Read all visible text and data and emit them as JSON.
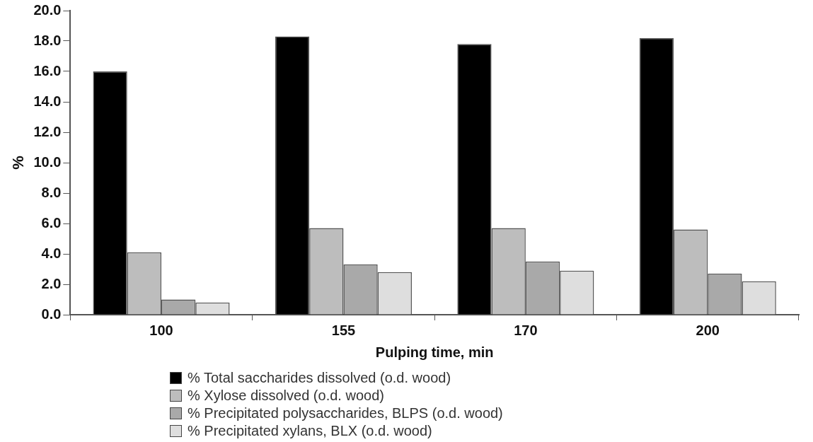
{
  "chart_data": {
    "type": "bar",
    "xlabel": "Pulping time, min",
    "ylabel": "%",
    "categories": [
      "100",
      "155",
      "170",
      "200"
    ],
    "series": [
      {
        "name": "% Total saccharides dissolved (o.d. wood)",
        "color": "#000000",
        "values": [
          16.0,
          18.3,
          17.8,
          18.2
        ]
      },
      {
        "name": "% Xylose dissolved (o.d. wood)",
        "color": "#bdbdbd",
        "values": [
          4.1,
          5.7,
          5.7,
          5.6
        ]
      },
      {
        "name": "% Precipitated polysaccharides, BLPS (o.d. wood)",
        "color": "#a9a9a9",
        "values": [
          1.0,
          3.3,
          3.5,
          2.7
        ]
      },
      {
        "name": "% Precipitated xylans, BLX (o.d. wood)",
        "color": "#dedede",
        "values": [
          0.8,
          2.8,
          2.9,
          2.2
        ]
      }
    ],
    "ylim": [
      0,
      20
    ],
    "yticks": [
      {
        "value": 0,
        "label": "0.0"
      },
      {
        "value": 2,
        "label": "2.0"
      },
      {
        "value": 4,
        "label": "4.0"
      },
      {
        "value": 6,
        "label": "6.0"
      },
      {
        "value": 8,
        "label": "8.0"
      },
      {
        "value": 10,
        "label": "10.0"
      },
      {
        "value": 12,
        "label": "12.0"
      },
      {
        "value": 14,
        "label": "14.0"
      },
      {
        "value": 16,
        "label": "16.0"
      },
      {
        "value": 18,
        "label": "18.0"
      },
      {
        "value": 20,
        "label": "20.0"
      }
    ],
    "grid": false,
    "legend": "bottom"
  }
}
